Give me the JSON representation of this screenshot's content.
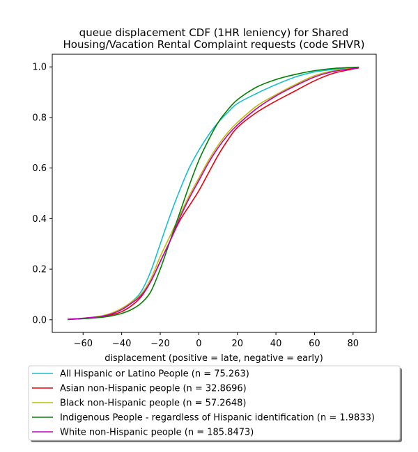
{
  "chart_data": {
    "type": "line",
    "title": [
      "queue displacement CDF (1HR leniency) for Shared",
      "Housing/Vacation Rental Complaint  requests (code SHVR)"
    ],
    "xlabel": "displacement (positive = late, negative = early)",
    "ylabel": "",
    "xlim": [
      -76,
      92
    ],
    "ylim": [
      -0.05,
      1.05
    ],
    "xticks": [
      -60,
      -40,
      -20,
      0,
      20,
      40,
      60,
      80
    ],
    "xtick_labels": [
      "−60",
      "−40",
      "−20",
      "0",
      "20",
      "40",
      "60",
      "80"
    ],
    "yticks": [
      0.0,
      0.2,
      0.4,
      0.6,
      0.8,
      1.0
    ],
    "ytick_labels": [
      "0.0",
      "0.2",
      "0.4",
      "0.6",
      "0.8",
      "1.0"
    ],
    "grid": false,
    "legend_placement": "below",
    "series": [
      {
        "name": "All Hispanic or Latino People (n = 75.263)",
        "color": "#17becf",
        "x": [
          -68,
          -60,
          -50,
          -45,
          -40,
          -35,
          -30,
          -25,
          -20,
          -15,
          -10,
          -5,
          0,
          5,
          10,
          15,
          20,
          30,
          40,
          50,
          60,
          70,
          83
        ],
        "y": [
          0.002,
          0.006,
          0.015,
          0.025,
          0.042,
          0.07,
          0.11,
          0.19,
          0.3,
          0.41,
          0.51,
          0.6,
          0.67,
          0.73,
          0.78,
          0.82,
          0.855,
          0.895,
          0.93,
          0.96,
          0.98,
          0.99,
          0.998
        ]
      },
      {
        "name": "Asian non-Hispanic people (n = 32.8696)",
        "color": "#e8000b",
        "x": [
          -68,
          -60,
          -50,
          -45,
          -40,
          -35,
          -30,
          -25,
          -20,
          -15,
          -10,
          -5,
          0,
          5,
          10,
          15,
          20,
          30,
          40,
          50,
          60,
          70,
          83
        ],
        "y": [
          0.002,
          0.005,
          0.012,
          0.02,
          0.032,
          0.055,
          0.09,
          0.15,
          0.23,
          0.31,
          0.39,
          0.45,
          0.51,
          0.58,
          0.65,
          0.71,
          0.76,
          0.82,
          0.865,
          0.905,
          0.945,
          0.975,
          0.996
        ]
      },
      {
        "name": "Black non-Hispanic people (n = 57.2648)",
        "color": "#bcbd00",
        "x": [
          -68,
          -60,
          -50,
          -45,
          -40,
          -35,
          -30,
          -25,
          -20,
          -15,
          -10,
          -5,
          0,
          5,
          10,
          15,
          20,
          30,
          40,
          50,
          60,
          70,
          83
        ],
        "y": [
          0.002,
          0.006,
          0.016,
          0.027,
          0.045,
          0.07,
          0.1,
          0.16,
          0.25,
          0.33,
          0.41,
          0.49,
          0.56,
          0.63,
          0.69,
          0.74,
          0.78,
          0.845,
          0.89,
          0.93,
          0.965,
          0.985,
          0.998
        ]
      },
      {
        "name": "Indigenous People - regardless of Hispanic identification (n = 1.9833)",
        "color": "#008000",
        "x": [
          -68,
          -60,
          -50,
          -45,
          -40,
          -35,
          -30,
          -25,
          -20,
          -15,
          -10,
          -5,
          0,
          5,
          10,
          15,
          20,
          30,
          40,
          50,
          60,
          70,
          83
        ],
        "y": [
          0.001,
          0.004,
          0.01,
          0.016,
          0.025,
          0.04,
          0.065,
          0.11,
          0.2,
          0.31,
          0.42,
          0.53,
          0.63,
          0.71,
          0.78,
          0.83,
          0.87,
          0.92,
          0.95,
          0.97,
          0.985,
          0.994,
          0.999
        ]
      },
      {
        "name": "White non-Hispanic people (n = 185.8473)",
        "color": "#c000c0",
        "x": [
          -68,
          -60,
          -50,
          -45,
          -40,
          -35,
          -30,
          -25,
          -20,
          -15,
          -10,
          -5,
          0,
          5,
          10,
          15,
          20,
          30,
          40,
          50,
          60,
          70,
          83
        ],
        "y": [
          0.002,
          0.006,
          0.014,
          0.024,
          0.04,
          0.065,
          0.095,
          0.15,
          0.23,
          0.31,
          0.4,
          0.48,
          0.55,
          0.62,
          0.68,
          0.73,
          0.77,
          0.835,
          0.885,
          0.925,
          0.96,
          0.982,
          0.997
        ]
      }
    ]
  }
}
